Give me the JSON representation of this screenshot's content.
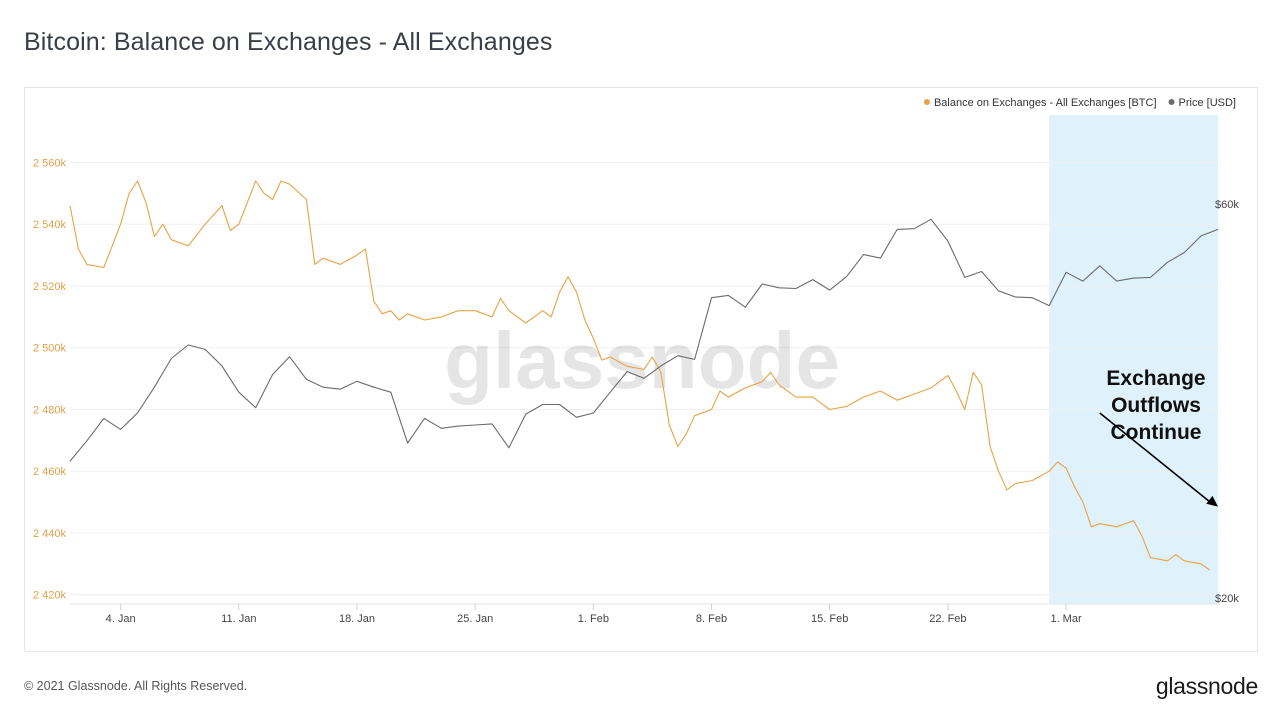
{
  "page": {
    "title": "Bitcoin: Balance on Exchanges - All Exchanges",
    "footer": "© 2021 Glassnode. All Rights Reserved.",
    "brand": "glassnode",
    "watermark": "glassnode"
  },
  "chart_data": {
    "type": "line",
    "title": "Bitcoin: Balance on Exchanges - All Exchanges",
    "legend_position": "top-right",
    "grid": true,
    "x_range": [
      "2021-01-01",
      "2021-03-10"
    ],
    "x_ticks": [
      {
        "label": "4. Jan",
        "date": "2021-01-04"
      },
      {
        "label": "11. Jan",
        "date": "2021-01-11"
      },
      {
        "label": "18. Jan",
        "date": "2021-01-18"
      },
      {
        "label": "25. Jan",
        "date": "2021-01-25"
      },
      {
        "label": "1. Feb",
        "date": "2021-02-01"
      },
      {
        "label": "8. Feb",
        "date": "2021-02-08"
      },
      {
        "label": "15. Feb",
        "date": "2021-02-15"
      },
      {
        "label": "22. Feb",
        "date": "2021-02-22"
      },
      {
        "label": "1. Mar",
        "date": "2021-03-01"
      }
    ],
    "y_left": {
      "range": [
        2417000,
        2577000
      ],
      "ticks": [
        {
          "label": "2 420k",
          "value": 2420000
        },
        {
          "label": "2 440k",
          "value": 2440000
        },
        {
          "label": "2 460k",
          "value": 2460000
        },
        {
          "label": "2 480k",
          "value": 2480000
        },
        {
          "label": "2 500k",
          "value": 2500000
        },
        {
          "label": "2 520k",
          "value": 2520000
        },
        {
          "label": "2 540k",
          "value": 2540000
        },
        {
          "label": "2 560k",
          "value": 2560000
        }
      ],
      "color": "#e8a245"
    },
    "y_right": {
      "scale": "log",
      "range": [
        20000,
        60000
      ],
      "ticks": [
        {
          "label": "$20k",
          "value": 20000
        },
        {
          "label": "$60k",
          "value": 60000
        }
      ]
    },
    "highlight": {
      "start": "2021-02-28",
      "end": "2021-03-10",
      "color": "#dff1fb"
    },
    "annotation": {
      "lines": [
        "Exchange",
        "Outflows",
        "Continue"
      ],
      "arrow_from": {
        "date": "2021-03-03",
        "price": 33500
      },
      "arrow_to": {
        "date": "2021-03-10",
        "price": 25800
      }
    },
    "series": [
      {
        "name": "Balance on Exchanges - All Exchanges [BTC]",
        "color": "#e8a245",
        "axis": "left",
        "points": [
          [
            "2021-01-01",
            2546000
          ],
          [
            "2021-01-01T12",
            2532000
          ],
          [
            "2021-01-02",
            2527000
          ],
          [
            "2021-01-03",
            2526000
          ],
          [
            "2021-01-03T12",
            2533000
          ],
          [
            "2021-01-04",
            2540000
          ],
          [
            "2021-01-04T12",
            2550000
          ],
          [
            "2021-01-05",
            2554000
          ],
          [
            "2021-01-05T12",
            2547000
          ],
          [
            "2021-01-06",
            2536000
          ],
          [
            "2021-01-06T12",
            2540000
          ],
          [
            "2021-01-07",
            2535000
          ],
          [
            "2021-01-08",
            2533000
          ],
          [
            "2021-01-09",
            2540000
          ],
          [
            "2021-01-10",
            2546000
          ],
          [
            "2021-01-10T12",
            2538000
          ],
          [
            "2021-01-11",
            2540000
          ],
          [
            "2021-01-11T12",
            2547000
          ],
          [
            "2021-01-12",
            2554000
          ],
          [
            "2021-01-12T12",
            2550000
          ],
          [
            "2021-01-13",
            2548000
          ],
          [
            "2021-01-13T12",
            2554000
          ],
          [
            "2021-01-14",
            2553000
          ],
          [
            "2021-01-15",
            2548000
          ],
          [
            "2021-01-15T12",
            2527000
          ],
          [
            "2021-01-16",
            2529000
          ],
          [
            "2021-01-17",
            2527000
          ],
          [
            "2021-01-18",
            2530000
          ],
          [
            "2021-01-18T12",
            2532000
          ],
          [
            "2021-01-19",
            2515000
          ],
          [
            "2021-01-19T12",
            2511000
          ],
          [
            "2021-01-20",
            2512000
          ],
          [
            "2021-01-20T12",
            2509000
          ],
          [
            "2021-01-21",
            2511000
          ],
          [
            "2021-01-22",
            2509000
          ],
          [
            "2021-01-23",
            2510000
          ],
          [
            "2021-01-24",
            2512000
          ],
          [
            "2021-01-25",
            2512000
          ],
          [
            "2021-01-26",
            2510000
          ],
          [
            "2021-01-26T12",
            2516000
          ],
          [
            "2021-01-27",
            2512000
          ],
          [
            "2021-01-28",
            2508000
          ],
          [
            "2021-01-29",
            2512000
          ],
          [
            "2021-01-29T12",
            2510000
          ],
          [
            "2021-01-30",
            2518000
          ],
          [
            "2021-01-30T12",
            2523000
          ],
          [
            "2021-01-31",
            2518000
          ],
          [
            "2021-01-31T12",
            2509000
          ],
          [
            "2021-02-01",
            2503000
          ],
          [
            "2021-02-01T12",
            2496000
          ],
          [
            "2021-02-02",
            2497000
          ],
          [
            "2021-02-03",
            2494000
          ],
          [
            "2021-02-04",
            2493000
          ],
          [
            "2021-02-04T12",
            2497000
          ],
          [
            "2021-02-05",
            2492000
          ],
          [
            "2021-02-05T12",
            2475000
          ],
          [
            "2021-02-06",
            2468000
          ],
          [
            "2021-02-06T12",
            2472000
          ],
          [
            "2021-02-07",
            2478000
          ],
          [
            "2021-02-08",
            2480000
          ],
          [
            "2021-02-08T12",
            2486000
          ],
          [
            "2021-02-09",
            2484000
          ],
          [
            "2021-02-10",
            2487000
          ],
          [
            "2021-02-11",
            2489000
          ],
          [
            "2021-02-11T12",
            2492000
          ],
          [
            "2021-02-12",
            2488000
          ],
          [
            "2021-02-13",
            2484000
          ],
          [
            "2021-02-14",
            2484000
          ],
          [
            "2021-02-15",
            2480000
          ],
          [
            "2021-02-16",
            2481000
          ],
          [
            "2021-02-17",
            2484000
          ],
          [
            "2021-02-18",
            2486000
          ],
          [
            "2021-02-19",
            2483000
          ],
          [
            "2021-02-20",
            2485000
          ],
          [
            "2021-02-21",
            2487000
          ],
          [
            "2021-02-22",
            2491000
          ],
          [
            "2021-02-22T12",
            2486000
          ],
          [
            "2021-02-23",
            2480000
          ],
          [
            "2021-02-23T12",
            2492000
          ],
          [
            "2021-02-24",
            2488000
          ],
          [
            "2021-02-24T12",
            2468000
          ],
          [
            "2021-02-25",
            2460000
          ],
          [
            "2021-02-25T12",
            2454000
          ],
          [
            "2021-02-26",
            2456000
          ],
          [
            "2021-02-27",
            2457000
          ],
          [
            "2021-02-28",
            2460000
          ],
          [
            "2021-02-28T12",
            2463000
          ],
          [
            "2021-03-01",
            2461000
          ],
          [
            "2021-03-01T12",
            2455000
          ],
          [
            "2021-03-02",
            2450000
          ],
          [
            "2021-03-02T12",
            2442000
          ],
          [
            "2021-03-03",
            2443000
          ],
          [
            "2021-03-04",
            2442000
          ],
          [
            "2021-03-05",
            2444000
          ],
          [
            "2021-03-05T12",
            2439000
          ],
          [
            "2021-03-06",
            2432000
          ],
          [
            "2021-03-07",
            2431000
          ],
          [
            "2021-03-07T12",
            2433000
          ],
          [
            "2021-03-08",
            2431000
          ],
          [
            "2021-03-09",
            2430000
          ],
          [
            "2021-03-09T12",
            2428000
          ]
        ]
      },
      {
        "name": "Price [USD]",
        "color": "#6b6b6b",
        "axis": "right",
        "points": [
          [
            "2021-01-01",
            29300
          ],
          [
            "2021-01-02",
            31000
          ],
          [
            "2021-01-03",
            33000
          ],
          [
            "2021-01-04",
            32000
          ],
          [
            "2021-01-05",
            33500
          ],
          [
            "2021-01-06",
            36000
          ],
          [
            "2021-01-07",
            39000
          ],
          [
            "2021-01-08",
            40500
          ],
          [
            "2021-01-09",
            40000
          ],
          [
            "2021-01-10",
            38200
          ],
          [
            "2021-01-11",
            35500
          ],
          [
            "2021-01-12",
            34000
          ],
          [
            "2021-01-13",
            37300
          ],
          [
            "2021-01-14",
            39200
          ],
          [
            "2021-01-15",
            36800
          ],
          [
            "2021-01-16",
            36000
          ],
          [
            "2021-01-17",
            35800
          ],
          [
            "2021-01-18",
            36600
          ],
          [
            "2021-01-19",
            36000
          ],
          [
            "2021-01-20",
            35500
          ],
          [
            "2021-01-21",
            30800
          ],
          [
            "2021-01-22",
            33000
          ],
          [
            "2021-01-23",
            32100
          ],
          [
            "2021-01-24",
            32300
          ],
          [
            "2021-01-25",
            32400
          ],
          [
            "2021-01-26",
            32500
          ],
          [
            "2021-01-27",
            30400
          ],
          [
            "2021-01-28",
            33400
          ],
          [
            "2021-01-29",
            34300
          ],
          [
            "2021-01-30",
            34300
          ],
          [
            "2021-01-31",
            33100
          ],
          [
            "2021-02-01",
            33500
          ],
          [
            "2021-02-02",
            35500
          ],
          [
            "2021-02-03",
            37600
          ],
          [
            "2021-02-04",
            36900
          ],
          [
            "2021-02-05",
            38200
          ],
          [
            "2021-02-06",
            39300
          ],
          [
            "2021-02-07",
            38900
          ],
          [
            "2021-02-08",
            46200
          ],
          [
            "2021-02-09",
            46500
          ],
          [
            "2021-02-10",
            45000
          ],
          [
            "2021-02-11",
            48000
          ],
          [
            "2021-02-12",
            47500
          ],
          [
            "2021-02-13",
            47400
          ],
          [
            "2021-02-14",
            48600
          ],
          [
            "2021-02-15",
            47200
          ],
          [
            "2021-02-16",
            49000
          ],
          [
            "2021-02-17",
            52100
          ],
          [
            "2021-02-18",
            51600
          ],
          [
            "2021-02-19",
            55900
          ],
          [
            "2021-02-20",
            56000
          ],
          [
            "2021-02-21",
            57500
          ],
          [
            "2021-02-22",
            54100
          ],
          [
            "2021-02-23",
            48900
          ],
          [
            "2021-02-24",
            49700
          ],
          [
            "2021-02-25",
            47100
          ],
          [
            "2021-02-26",
            46300
          ],
          [
            "2021-02-27",
            46200
          ],
          [
            "2021-02-28",
            45200
          ],
          [
            "2021-03-01",
            49600
          ],
          [
            "2021-03-02",
            48400
          ],
          [
            "2021-03-03",
            50500
          ],
          [
            "2021-03-04",
            48400
          ],
          [
            "2021-03-05",
            48800
          ],
          [
            "2021-03-06",
            48900
          ],
          [
            "2021-03-07",
            51000
          ],
          [
            "2021-03-08",
            52400
          ],
          [
            "2021-03-09",
            54900
          ],
          [
            "2021-03-10",
            55900
          ]
        ]
      }
    ]
  }
}
